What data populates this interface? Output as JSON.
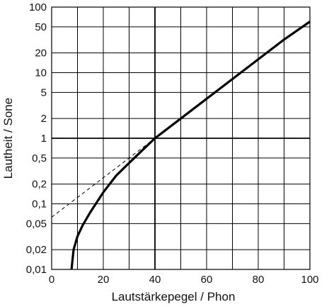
{
  "chart_data": {
    "type": "line",
    "xlabel": "Lautstärkepegel / Phon",
    "ylabel": "Lautheit / Sone",
    "xlim": [
      0,
      100
    ],
    "y_scale": "log",
    "ylim": [
      0.01,
      100
    ],
    "grid": true,
    "x_ticks": [
      {
        "value": 0,
        "label": "0"
      },
      {
        "value": 20,
        "label": "20"
      },
      {
        "value": 40,
        "label": "40"
      },
      {
        "value": 60,
        "label": "60"
      },
      {
        "value": 80,
        "label": "80"
      },
      {
        "value": 100,
        "label": "100"
      }
    ],
    "y_ticks": [
      {
        "value": 0.01,
        "label": "0,01"
      },
      {
        "value": 0.02,
        "label": "0,02"
      },
      {
        "value": 0.05,
        "label": "0,05"
      },
      {
        "value": 0.1,
        "label": "0,1"
      },
      {
        "value": 0.2,
        "label": "0,2"
      },
      {
        "value": 0.5,
        "label": "0,5"
      },
      {
        "value": 1,
        "label": "1"
      },
      {
        "value": 2,
        "label": "2"
      },
      {
        "value": 5,
        "label": "5"
      },
      {
        "value": 10,
        "label": "10"
      },
      {
        "value": 20,
        "label": "20"
      },
      {
        "value": 50,
        "label": "50"
      },
      {
        "value": 100,
        "label": "100"
      }
    ],
    "series": [
      {
        "style": "solid-thick",
        "x": [
          7.7,
          8.5,
          10,
          12,
          15,
          20,
          25,
          30,
          35,
          40,
          50,
          60,
          70,
          80,
          90,
          100
        ],
        "y": [
          0.01,
          0.02,
          0.032,
          0.047,
          0.075,
          0.15,
          0.27,
          0.42,
          0.65,
          1,
          2,
          4,
          8,
          16,
          32,
          60
        ]
      },
      {
        "style": "dashed",
        "x": [
          0,
          40
        ],
        "y": [
          0.0625,
          1
        ]
      }
    ]
  }
}
